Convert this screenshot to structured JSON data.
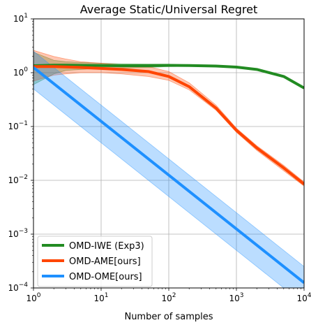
{
  "chart_data": {
    "type": "line",
    "title": "Average Static/Universal Regret",
    "xlabel": "Number of samples",
    "ylabel": "",
    "xscale": "log",
    "yscale": "log",
    "xlim": [
      1,
      10000
    ],
    "ylim": [
      0.0001,
      10
    ],
    "grid": true,
    "legend_position": "lower-left",
    "x_ticks": [
      {
        "value": 1,
        "base": "10",
        "exp": "0"
      },
      {
        "value": 10,
        "base": "10",
        "exp": "1"
      },
      {
        "value": 100,
        "base": "10",
        "exp": "2"
      },
      {
        "value": 1000,
        "base": "10",
        "exp": "3"
      },
      {
        "value": 10000,
        "base": "10",
        "exp": "4"
      }
    ],
    "y_ticks": [
      {
        "value": 0.0001,
        "base": "10",
        "exp": "−4"
      },
      {
        "value": 0.001,
        "base": "10",
        "exp": "−3"
      },
      {
        "value": 0.01,
        "base": "10",
        "exp": "−2"
      },
      {
        "value": 0.1,
        "base": "10",
        "exp": "−1"
      },
      {
        "value": 1,
        "base": "10",
        "exp": "0"
      },
      {
        "value": 10,
        "base": "10",
        "exp": "1"
      }
    ],
    "series": [
      {
        "name": "OMD-IWE (Exp3)",
        "color": "#228b22",
        "x": [
          1,
          2,
          3,
          5,
          10,
          20,
          50,
          100,
          200,
          500,
          1000,
          2000,
          5000,
          10000
        ],
        "y": [
          1.35,
          1.38,
          1.38,
          1.37,
          1.36,
          1.35,
          1.35,
          1.37,
          1.36,
          1.33,
          1.27,
          1.15,
          0.85,
          0.52
        ],
        "lower": [
          0.6,
          0.95,
          1.1,
          1.15,
          1.2,
          1.22,
          1.25,
          1.3,
          1.31,
          1.3,
          1.24,
          1.12,
          0.82,
          0.5
        ],
        "upper": [
          2.4,
          1.7,
          1.6,
          1.55,
          1.5,
          1.47,
          1.45,
          1.44,
          1.4,
          1.36,
          1.3,
          1.18,
          0.88,
          0.54
        ]
      },
      {
        "name": "OMD-AME[ours]",
        "color": "#ff4500",
        "x": [
          1,
          2,
          3,
          5,
          10,
          20,
          50,
          100,
          200,
          500,
          1000,
          2000,
          5000,
          10000
        ],
        "y": [
          1.3,
          1.3,
          1.28,
          1.25,
          1.2,
          1.15,
          1.05,
          0.85,
          0.55,
          0.22,
          0.085,
          0.04,
          0.017,
          0.0085
        ],
        "lower": [
          0.7,
          0.9,
          0.95,
          1.0,
          1.0,
          0.95,
          0.85,
          0.72,
          0.48,
          0.2,
          0.078,
          0.036,
          0.015,
          0.0078
        ],
        "upper": [
          2.6,
          2.0,
          1.8,
          1.6,
          1.5,
          1.4,
          1.3,
          1.05,
          0.65,
          0.25,
          0.093,
          0.044,
          0.019,
          0.0093
        ]
      },
      {
        "name": "OMD-OME[ours]",
        "color": "#1e90ff",
        "x": [
          1,
          10,
          100,
          1000,
          10000
        ],
        "y": [
          1.25,
          0.125,
          0.0125,
          0.00125,
          0.000125
        ],
        "lower": [
          0.5,
          0.05,
          0.005,
          0.0005,
          5e-05
        ],
        "upper": [
          2.5,
          0.25,
          0.025,
          0.0025,
          0.00025
        ]
      }
    ]
  }
}
